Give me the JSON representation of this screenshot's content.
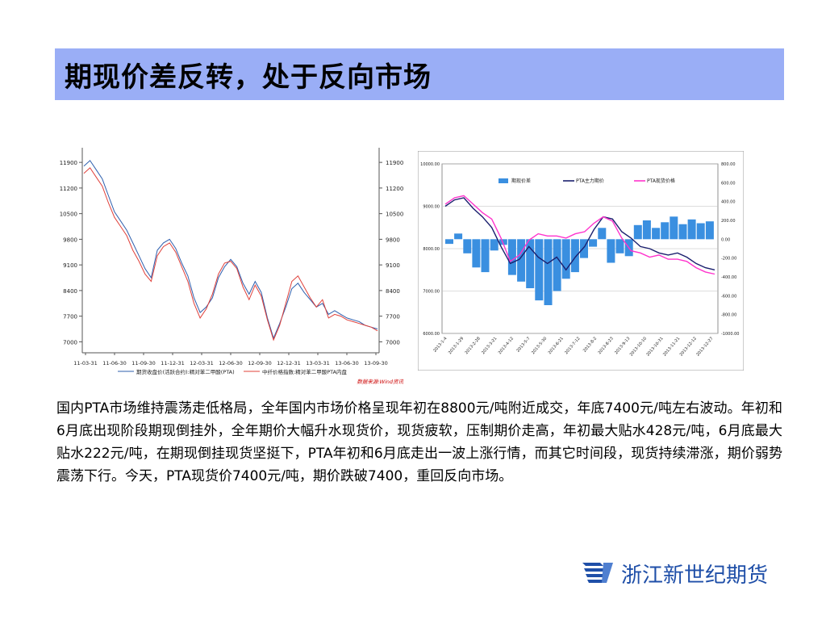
{
  "title": "期现价差反转，处于反向市场",
  "paragraph": "国内PTA市场维持震荡走低格局，全年国内市场价格呈现年初在8800元/吨附近成交，年底7400元/吨左右波动。年初和6月底出现阶段期现倒挂外，全年期价大幅升水现货价，现货疲软，压制期价走高，年初最大贴水428元/吨，6月底最大贴水222元/吨，在期现倒挂现货坚挺下，PTA年初和6月底走出一波上涨行情，而其它时间段，现货持续滞涨，期价弱势震荡下行。今天，PTA现货价7400元/吨，期价跌破7400，重回反向市场。",
  "logo": {
    "text": "浙江新世纪期货",
    "icon": "company-logo-icon"
  },
  "colors": {
    "title_bg": "#9aaef6",
    "blue_line": "#2e5fae",
    "red_line": "#e0403a",
    "bar": "#3a8fe0",
    "navy": "#1a1f6e",
    "magenta": "#ff33cc",
    "logo_blue": "#1f4fa8"
  },
  "chart_data": [
    {
      "type": "line",
      "x_ticks": [
        "11-03-31",
        "11-06-30",
        "11-09-30",
        "11-12-31",
        "12-03-31",
        "12-06-30",
        "12-09-30",
        "12-12-31",
        "13-03-31",
        "13-06-30",
        "13-09-30"
      ],
      "y_ticks": [
        "11900",
        "11200",
        "10500",
        "9800",
        "9100",
        "8400",
        "7700",
        "7000"
      ],
      "ylim": [
        6700,
        12300
      ],
      "grid": false,
      "legend": "bottom",
      "source": "数据来源:Wind资讯",
      "series": [
        {
          "name": "期货收盘价(活跃合约):精对苯二甲酸(PTA)",
          "color": "#2e5fae",
          "values": [
            11800,
            11950,
            11700,
            11450,
            11000,
            10550,
            10300,
            10050,
            9700,
            9350,
            9000,
            8750,
            9500,
            9700,
            9800,
            9550,
            9150,
            8800,
            8200,
            7800,
            7950,
            8200,
            8750,
            9050,
            9250,
            9050,
            8600,
            8300,
            8650,
            8350,
            7650,
            7100,
            7500,
            7950,
            8450,
            8600,
            8350,
            8150,
            7950,
            8050,
            7750,
            7850,
            7750,
            7650,
            7600,
            7550,
            7450,
            7400,
            7350
          ]
        },
        {
          "name": "中纤价格指数:精对苯二甲酸PTA内盘",
          "color": "#e0403a",
          "values": [
            11600,
            11750,
            11500,
            11250,
            10800,
            10400,
            10150,
            9900,
            9500,
            9200,
            8850,
            8650,
            9350,
            9600,
            9700,
            9450,
            9050,
            8650,
            8050,
            7650,
            7900,
            8300,
            8850,
            9150,
            9200,
            9000,
            8500,
            8150,
            8550,
            8250,
            7600,
            7050,
            7450,
            8050,
            8650,
            8800,
            8500,
            8200,
            7950,
            8150,
            7650,
            7750,
            7700,
            7600,
            7550,
            7500,
            7450,
            7400,
            7300
          ]
        }
      ]
    },
    {
      "type": "line",
      "left_ticks": [
        "10000.00",
        "9000.00",
        "8000.00",
        "7000.00",
        "6000.00"
      ],
      "right_ticks": [
        "800.00",
        "600.00",
        "400.00",
        "200.00",
        "0.00",
        "-200.00",
        "-400.00",
        "-600.00",
        "-800.00",
        "-1000.00"
      ],
      "ylim_left": [
        6000,
        10000
      ],
      "ylim_right": [
        -1000,
        800
      ],
      "x_ticks": [
        "2013-1-4",
        "2013-1-29",
        "2013-2-28",
        "2013-3-21",
        "2013-4-12",
        "2013-5-7",
        "2013-5-30",
        "2013-6-21",
        "2013-7-12",
        "2013-8-2",
        "2013-8-23",
        "2013-9-13",
        "2013-10-10",
        "2013-10-31",
        "2013-11-21",
        "2013-12-12",
        "2013-12-27"
      ],
      "legend": "top",
      "series": [
        {
          "name": "期现价差",
          "kind": "bar",
          "axis": "right",
          "color": "#3a8fe0",
          "values": [
            -50,
            60,
            -150,
            -300,
            -350,
            -120,
            -60,
            -380,
            -450,
            -520,
            -650,
            -700,
            -550,
            -420,
            -350,
            -200,
            -80,
            120,
            -250,
            -150,
            -180,
            150,
            200,
            120,
            180,
            240,
            160,
            210,
            170,
            190
          ]
        },
        {
          "name": "PTA主力期价",
          "kind": "line",
          "axis": "left",
          "color": "#1a1f6e",
          "values": [
            9000,
            9150,
            9200,
            8950,
            8750,
            8500,
            8050,
            7650,
            7750,
            8050,
            7800,
            7650,
            7800,
            7500,
            7800,
            8050,
            8450,
            8750,
            8700,
            8400,
            8250,
            8050,
            8000,
            7900,
            7850,
            7900,
            7800,
            7650,
            7550,
            7500
          ]
        },
        {
          "name": "PTA现货价格",
          "kind": "line",
          "axis": "left",
          "color": "#ff33cc",
          "values": [
            9050,
            9200,
            9250,
            9050,
            8850,
            8700,
            8250,
            7700,
            7850,
            8200,
            8350,
            8300,
            8300,
            8250,
            8350,
            8400,
            8600,
            8750,
            8650,
            8250,
            7950,
            7900,
            7800,
            7850,
            7750,
            7750,
            7700,
            7550,
            7450,
            7400
          ]
        }
      ]
    }
  ]
}
